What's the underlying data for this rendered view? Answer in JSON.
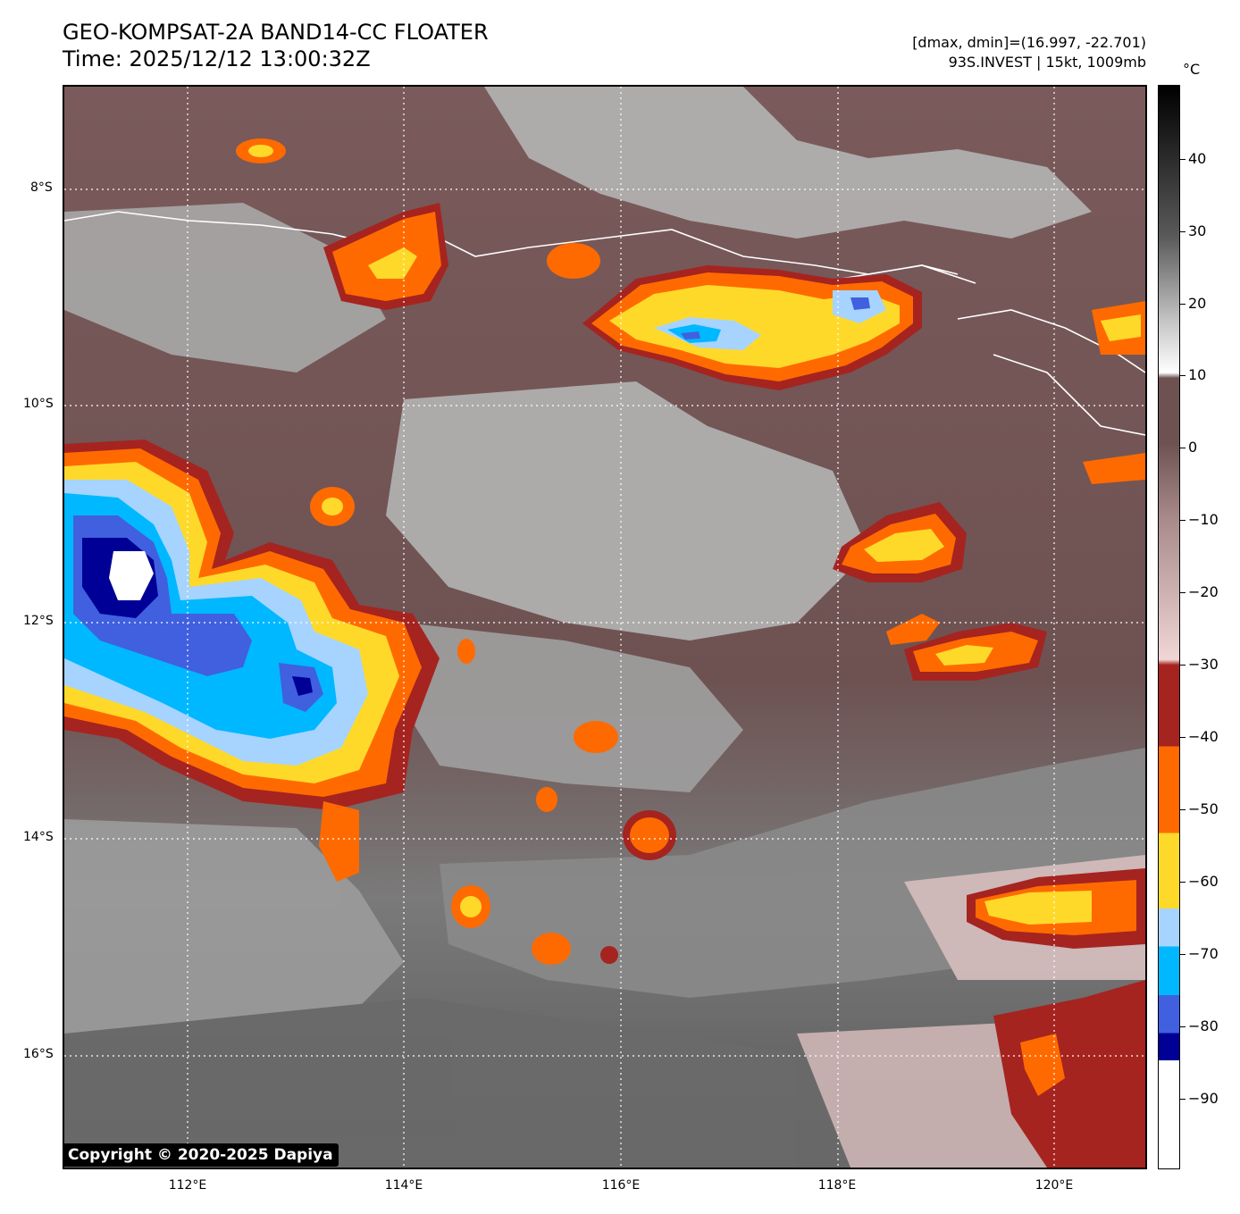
{
  "title": {
    "line1": "GEO-KOMPSAT-2A BAND14-CC FLOATER",
    "line2": "Time: 2025/12/12 13:00:32Z"
  },
  "info": {
    "line1": "[dmax, dmin]=(16.997, -22.701)",
    "line2": "93S.INVEST | 15kt, 1009mb"
  },
  "colorbar": {
    "unit": "°C",
    "ticks": [
      "40",
      "30",
      "20",
      "10",
      "0",
      "−10",
      "−20",
      "−30",
      "−40",
      "−50",
      "−60",
      "−70",
      "−80",
      "−90"
    ],
    "colors": {
      "white_top": "#ffffff",
      "gray_dark": "#5a5a5a",
      "brown": "#6e5252",
      "pink": "#f0d6d6",
      "red": "#a52420",
      "orange": "#ff6a00",
      "yellow": "#ffd92a",
      "lightblue": "#a6d4ff",
      "cyan": "#00b8ff",
      "blue": "#4060e0",
      "navy": "#000096"
    }
  },
  "axes": {
    "lat_labels": [
      "8°S",
      "10°S",
      "12°S",
      "14°S",
      "16°S"
    ],
    "lon_labels": [
      "112°E",
      "114°E",
      "116°E",
      "118°E",
      "120°E"
    ]
  },
  "copyright": "Copyright © 2020-2025 Dapiya"
}
